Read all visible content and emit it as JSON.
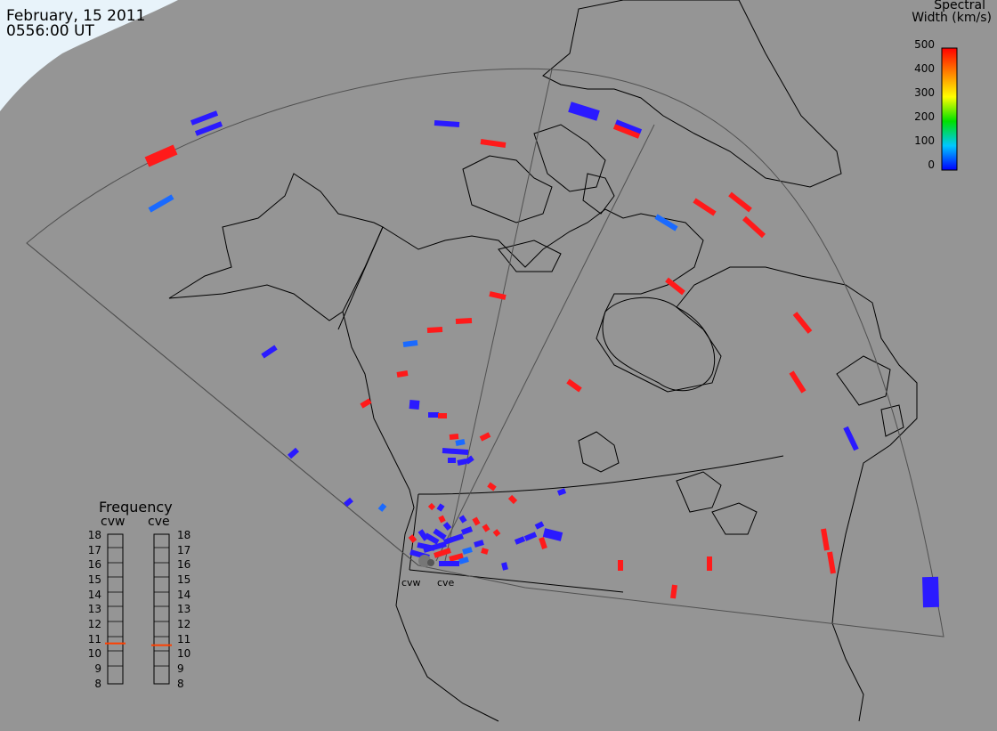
{
  "header": {
    "date": "February, 15 2011",
    "time": "0556:00 UT"
  },
  "legend": {
    "title_line1": "Spectral",
    "title_line2": "Width (km/s)",
    "ticks": [
      "500",
      "400",
      "300",
      "200",
      "100",
      "0"
    ],
    "colors": [
      "#0000ff",
      "#00c8ff",
      "#00e000",
      "#ffff00",
      "#ff8000",
      "#ff0000"
    ]
  },
  "frequency_panel": {
    "title": "Frequency",
    "radars": [
      "cvw",
      "cve"
    ],
    "labels": [
      "18",
      "17",
      "16",
      "15",
      "14",
      "13",
      "12",
      "11",
      "10",
      "9",
      "8"
    ],
    "cvw_frequency_mhz": 10.7,
    "cve_frequency_mhz": 10.7,
    "marker_color": "#ff4000"
  },
  "sites": [
    "cvw",
    "cve"
  ],
  "colors": {
    "background": "#959595",
    "coastline": "#000000",
    "fov_outline": "#505050",
    "red": "#ff1a1a",
    "blue": "#2a1aff",
    "light_blue": "#1a6aff"
  }
}
